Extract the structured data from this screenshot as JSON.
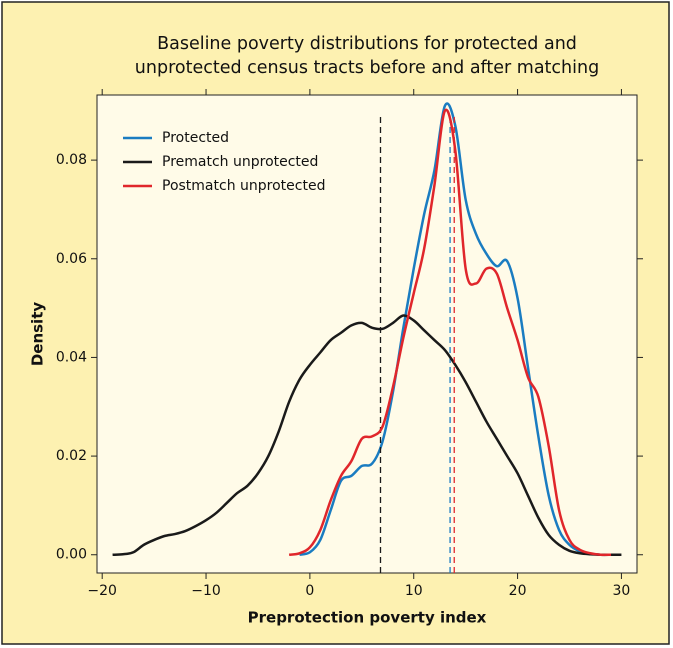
{
  "chart_data": {
    "type": "line",
    "title": [
      "Baseline poverty distributions for protected and",
      "unprotected census tracts before and after matching"
    ],
    "x_label": "Preprotection poverty index",
    "y_label": "Density",
    "x": [
      -19,
      -18,
      -17,
      -16,
      -15,
      -14,
      -13,
      -12,
      -11,
      -10,
      -9,
      -8,
      -7,
      -6,
      -5,
      -4,
      -3,
      -2,
      -1,
      0,
      1,
      2,
      3,
      4,
      5,
      6,
      7,
      8,
      9,
      10,
      11,
      12,
      13,
      14,
      15,
      16,
      17,
      18,
      19,
      20,
      21,
      22,
      23,
      24,
      25,
      26,
      27,
      28,
      29,
      30
    ],
    "series": [
      {
        "name": "Protected",
        "color": "#1a7cc1",
        "mean": 13.5,
        "values": [
          null,
          null,
          null,
          null,
          null,
          null,
          null,
          null,
          null,
          null,
          null,
          null,
          null,
          null,
          null,
          null,
          null,
          null,
          0,
          0.0005,
          0.003,
          0.009,
          0.015,
          0.016,
          0.018,
          0.0185,
          0.023,
          0.033,
          0.046,
          0.058,
          0.069,
          0.078,
          0.091,
          0.087,
          0.072,
          0.065,
          0.061,
          0.0585,
          0.0595,
          0.052,
          0.038,
          0.024,
          0.012,
          0.005,
          0.002,
          0.0007,
          0.0002,
          0,
          0,
          null
        ]
      },
      {
        "name": "Prematch unprotected",
        "color": "#1a1a1a",
        "mean": 6.8,
        "values": [
          0,
          0.0001,
          0.0005,
          0.002,
          0.003,
          0.0038,
          0.0042,
          0.0048,
          0.0058,
          0.007,
          0.0085,
          0.0105,
          0.0125,
          0.014,
          0.0165,
          0.02,
          0.025,
          0.031,
          0.0355,
          0.0385,
          0.041,
          0.0435,
          0.045,
          0.0465,
          0.047,
          0.046,
          0.0458,
          0.047,
          0.0485,
          0.0475,
          0.0455,
          0.0435,
          0.0415,
          0.0385,
          0.035,
          0.031,
          0.027,
          0.0235,
          0.02,
          0.0165,
          0.012,
          0.0075,
          0.004,
          0.002,
          0.0008,
          0.0003,
          0.0001,
          0,
          0,
          0
        ]
      },
      {
        "name": "Postmatch unprotected",
        "color": "#e0262b",
        "mean": 13.9,
        "values": [
          null,
          null,
          null,
          null,
          null,
          null,
          null,
          null,
          null,
          null,
          null,
          null,
          null,
          null,
          null,
          null,
          null,
          0,
          0.0003,
          0.0015,
          0.005,
          0.011,
          0.016,
          0.019,
          0.0235,
          0.024,
          0.026,
          0.034,
          0.044,
          0.053,
          0.062,
          0.075,
          0.09,
          0.082,
          0.058,
          0.055,
          0.058,
          0.057,
          0.05,
          0.0435,
          0.036,
          0.032,
          0.022,
          0.009,
          0.003,
          0.001,
          0.0003,
          0,
          0,
          null
        ]
      }
    ],
    "xlim": [
      -20.5,
      31.5
    ],
    "ylim": [
      -0.0037,
      0.0932
    ],
    "xticks": [
      {
        "value": -20,
        "label": "−20"
      },
      {
        "value": -10,
        "label": "−10"
      },
      0,
      10,
      20,
      30
    ],
    "yticks": [
      {
        "value": 0,
        "label": "0.00"
      },
      {
        "value": 0.02,
        "label": "0.02"
      },
      {
        "value": 0.04,
        "label": "0.04"
      },
      {
        "value": 0.06,
        "label": "0.06"
      },
      {
        "value": 0.08,
        "label": "0.08"
      }
    ],
    "legend": "upper left"
  }
}
